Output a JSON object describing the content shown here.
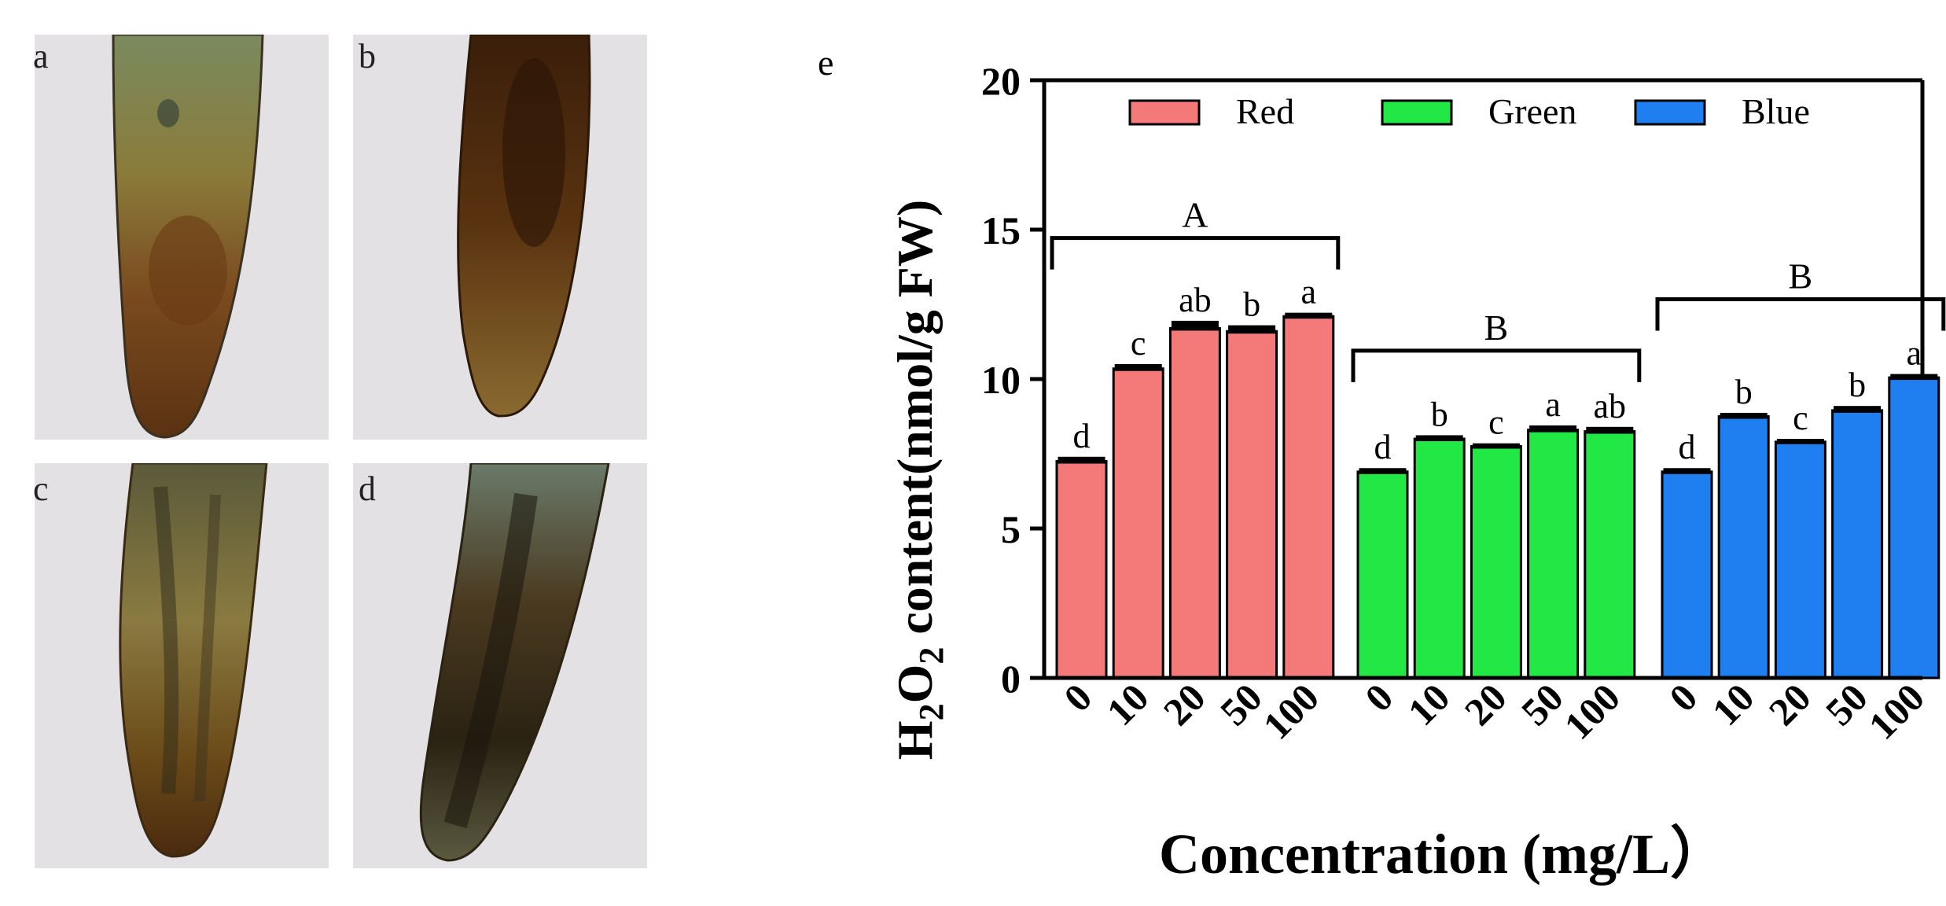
{
  "panels": [
    {
      "label": "a"
    },
    {
      "label": "b"
    },
    {
      "label": "c"
    },
    {
      "label": "d"
    }
  ],
  "chart_data": {
    "panel_label": "e",
    "type": "bar",
    "ylabel_main": "H",
    "ylabel_sub1": "2",
    "ylabel_mid": "O",
    "ylabel_sub2": "2",
    "ylabel_rest": " content(nmol/g FW)",
    "xlabel": "Concentration (mg/L）",
    "ylim": [
      0,
      20
    ],
    "yticks": [
      0,
      5,
      10,
      15,
      20
    ],
    "categories": [
      "0",
      "10",
      "20",
      "50",
      "100"
    ],
    "series": [
      {
        "name": "Red",
        "color": "#f47a7a",
        "values": [
          7.25,
          10.35,
          11.7,
          11.6,
          12.1
        ],
        "errors": [
          0.15,
          0.15,
          0.25,
          0.2,
          0.12
        ],
        "letters": [
          "d",
          "c",
          "ab",
          "b",
          "a"
        ],
        "group_letter": "A"
      },
      {
        "name": "Green",
        "color": "#22e845",
        "values": [
          6.9,
          8.0,
          7.75,
          8.3,
          8.25
        ],
        "errors": [
          0.12,
          0.12,
          0.1,
          0.15,
          0.15
        ],
        "letters": [
          "d",
          "b",
          "c",
          "a",
          "ab"
        ],
        "group_letter": "B"
      },
      {
        "name": "Blue",
        "color": "#1f7ff0",
        "values": [
          6.9,
          8.75,
          7.9,
          8.95,
          10.05
        ],
        "errors": [
          0.12,
          0.12,
          0.1,
          0.15,
          0.12
        ],
        "letters": [
          "d",
          "b",
          "c",
          "b",
          "a"
        ],
        "group_letter": "B"
      }
    ]
  }
}
